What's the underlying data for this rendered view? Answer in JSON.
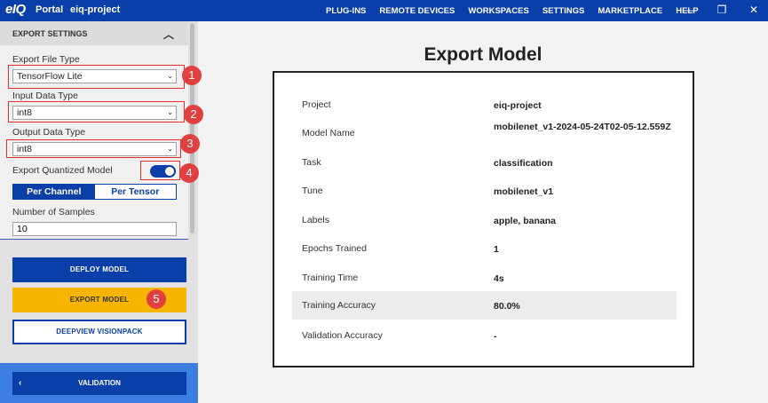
{
  "topbar": {
    "logo": "eIQ",
    "portal": "Portal",
    "project": "eiq-project",
    "nav": [
      "PLUG-INS",
      "REMOTE DEVICES",
      "WORKSPACES",
      "SETTINGS",
      "MARKETPLACE",
      "HELP"
    ],
    "window_controls": {
      "minimize": "—",
      "restore": "❐",
      "close": "✕"
    }
  },
  "sidebar": {
    "section_title": "EXPORT SETTINGS",
    "section_chevron": "︿",
    "export_file_type": {
      "label": "Export File Type",
      "value": "TensorFlow Lite"
    },
    "input_data_type": {
      "label": "Input Data Type",
      "value": "int8"
    },
    "output_data_type": {
      "label": "Output Data Type",
      "value": "int8"
    },
    "export_quantized": {
      "label": "Export Quantized Model",
      "enabled": true
    },
    "quantization_mode": {
      "options": [
        "Per Channel",
        "Per Tensor"
      ],
      "selected": "Per Channel"
    },
    "num_samples": {
      "label": "Number of Samples",
      "value": "10"
    },
    "buttons": {
      "deploy": "DEPLOY MODEL",
      "export": "EXPORT MODEL",
      "deepview": "DEEPVIEW VISIONPACK",
      "validation": "VALIDATION",
      "validation_arrow": "‹"
    },
    "badges": [
      "1",
      "2",
      "3",
      "4",
      "5"
    ],
    "colors": {
      "primary": "#0a3ea8",
      "accent": "#f7b500",
      "badge": "#e04040"
    }
  },
  "main": {
    "title": "Export Model",
    "details": [
      {
        "key": "Project",
        "value": "eiq-project"
      },
      {
        "key": "Model Name",
        "value": "mobilenet_v1-2024-05-24T02-05-12.559Z"
      },
      {
        "key": "Task",
        "value": "classification"
      },
      {
        "key": "Tune",
        "value": "mobilenet_v1"
      },
      {
        "key": "Labels",
        "value": "apple, banana"
      },
      {
        "key": "Epochs Trained",
        "value": "1"
      },
      {
        "key": "Training Time",
        "value": "4s"
      },
      {
        "key": "Training Accuracy",
        "value": "80.0%"
      },
      {
        "key": "Validation Accuracy",
        "value": "-"
      }
    ]
  }
}
